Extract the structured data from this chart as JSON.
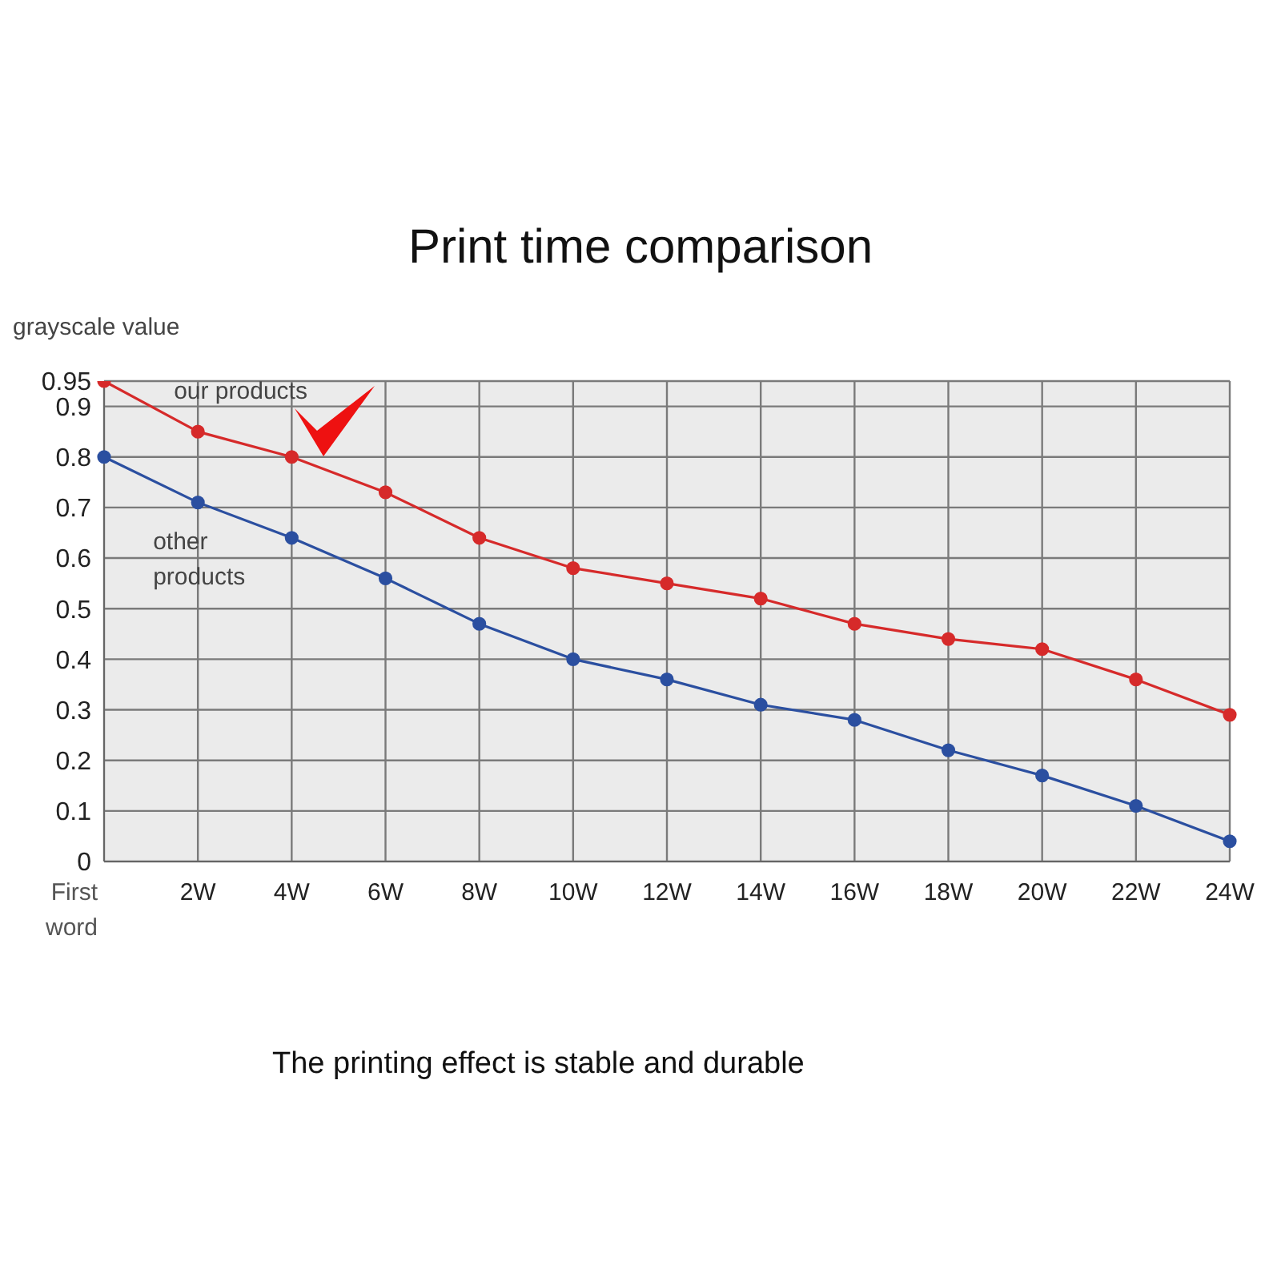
{
  "chart_data": {
    "type": "line",
    "title": "Print time comparison",
    "ylabel": "grayscale value",
    "categories": [
      "First word",
      "2W",
      "4W",
      "6W",
      "8W",
      "10W",
      "12W",
      "14W",
      "16W",
      "18W",
      "20W",
      "22W",
      "24W"
    ],
    "series": [
      {
        "name": "our products",
        "color": "#d62a2a",
        "values": [
          0.95,
          0.85,
          0.8,
          0.73,
          0.64,
          0.58,
          0.55,
          0.52,
          0.47,
          0.44,
          0.42,
          0.36,
          0.29
        ]
      },
      {
        "name": "other products",
        "color": "#2b4fa0",
        "values": [
          0.8,
          0.71,
          0.64,
          0.56,
          0.47,
          0.4,
          0.36,
          0.31,
          0.28,
          0.22,
          0.17,
          0.11,
          0.04
        ]
      }
    ],
    "ylim": [
      0,
      0.95
    ],
    "yticks": [
      0,
      0.1,
      0.2,
      0.3,
      0.4,
      0.5,
      0.6,
      0.7,
      0.8,
      0.9,
      0.95
    ],
    "grid": true,
    "legend": false,
    "marker": "circle",
    "line_style": "solid",
    "annotations": [
      "The printing effect is stable and durable"
    ]
  }
}
